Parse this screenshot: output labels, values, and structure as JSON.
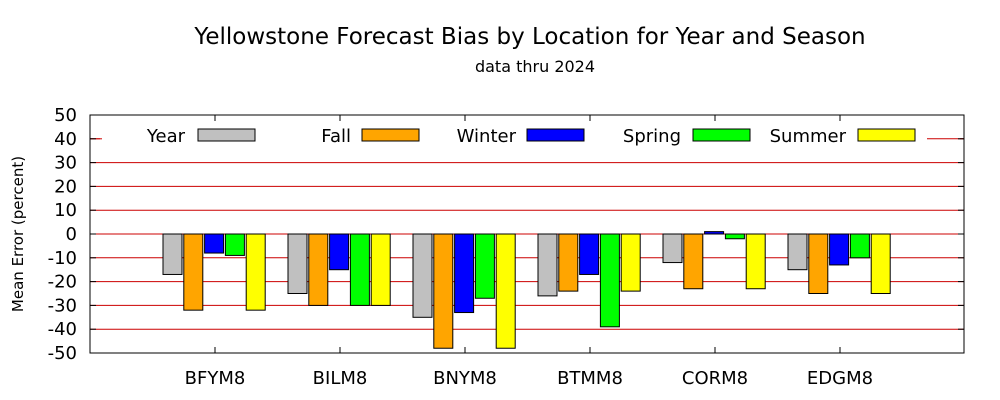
{
  "chart_data": {
    "type": "bar",
    "title": "Yellowstone Forecast Bias by Location for Year and Season",
    "subtitle": "data thru 2024",
    "ylabel": "Mean Error (percent)",
    "xlabel": "",
    "ylim": [
      -50,
      50
    ],
    "yticks": [
      50,
      40,
      30,
      20,
      10,
      0,
      -10,
      -20,
      -30,
      -40,
      -50
    ],
    "grid": true,
    "grid_color": "#cc0000",
    "legend_position": "top",
    "categories": [
      "BFYM8",
      "BILM8",
      "BNYM8",
      "BTMM8",
      "CORM8",
      "EDGM8"
    ],
    "series": [
      {
        "name": "Year",
        "color": "#c0c0c0",
        "values": [
          -17,
          -25,
          -35,
          -26,
          -12,
          -15
        ]
      },
      {
        "name": "Fall",
        "color": "#ffa500",
        "values": [
          -32,
          -30,
          -48,
          -24,
          -23,
          -25
        ]
      },
      {
        "name": "Winter",
        "color": "#0000ff",
        "values": [
          -8,
          -15,
          -33,
          -17,
          1,
          -13
        ]
      },
      {
        "name": "Spring",
        "color": "#00ff00",
        "values": [
          -9,
          -30,
          -27,
          -39,
          -2,
          -10
        ]
      },
      {
        "name": "Summer",
        "color": "#ffff00",
        "values": [
          -32,
          -30,
          -48,
          -24,
          -23,
          -25
        ]
      }
    ]
  }
}
